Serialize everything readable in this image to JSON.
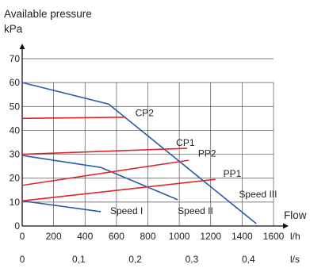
{
  "chart_data": {
    "type": "line",
    "title_line1": "Available pressure",
    "title_line2": "kPa",
    "x_unit_flow": "Flow",
    "x_unit_lh": "l/h",
    "x_unit_ls": "l/s",
    "xlim": [
      0,
      1600
    ],
    "ylim": [
      0,
      70
    ],
    "x_ticks": [
      0,
      200,
      400,
      600,
      800,
      1000,
      1200,
      1400,
      1600
    ],
    "x_tick_labels": [
      "0",
      "200",
      "400",
      "600",
      "800",
      "1000",
      "1200",
      "1400",
      "1600"
    ],
    "y_ticks": [
      0,
      10,
      20,
      30,
      40,
      50,
      60,
      70
    ],
    "y_tick_labels": [
      "0",
      "10",
      "20",
      "30",
      "40",
      "50",
      "60",
      "70"
    ],
    "ls_ticks": [
      0,
      0.1,
      0.2,
      0.3,
      0.4
    ],
    "ls_tick_labels": [
      "0",
      "0,1",
      "0,2",
      "0,3",
      "0,4"
    ],
    "grid": true,
    "pump_curves_color": "#2b5ca8",
    "control_curves_color": "#e0262b",
    "series": [
      {
        "name": "Speed I",
        "color": "#2b5ca8",
        "x": [
          0,
          500
        ],
        "y": [
          10.5,
          6
        ]
      },
      {
        "name": "Speed II",
        "color": "#2b5ca8",
        "x": [
          0,
          500,
          990
        ],
        "y": [
          29.5,
          24.5,
          11
        ]
      },
      {
        "name": "Speed III",
        "color": "#2b5ca8",
        "x": [
          0,
          550,
          1490
        ],
        "y": [
          60,
          51,
          1
        ]
      },
      {
        "name": "CP2",
        "color": "#e0262b",
        "x": [
          0,
          660
        ],
        "y": [
          45,
          45.5
        ]
      },
      {
        "name": "CP1",
        "color": "#e0262b",
        "x": [
          0,
          1050
        ],
        "y": [
          30,
          32.5
        ]
      },
      {
        "name": "PP2",
        "color": "#e0262b",
        "x": [
          0,
          1060
        ],
        "y": [
          17,
          27.5
        ]
      },
      {
        "name": "PP1",
        "color": "#e0262b",
        "x": [
          0,
          1230
        ],
        "y": [
          10.5,
          19.5
        ]
      }
    ],
    "labels": [
      {
        "text": "CP2",
        "at": [
          720,
          46
        ]
      },
      {
        "text": "CP1",
        "at": [
          980,
          33.5
        ]
      },
      {
        "text": "PP2",
        "at": [
          1120,
          29
        ]
      },
      {
        "text": "PP1",
        "at": [
          1280,
          20.5
        ]
      },
      {
        "text": "Speed III",
        "at": [
          1380,
          12
        ]
      },
      {
        "text": "Speed II",
        "at": [
          990,
          5
        ]
      },
      {
        "text": "Speed I",
        "at": [
          560,
          5
        ]
      }
    ]
  }
}
